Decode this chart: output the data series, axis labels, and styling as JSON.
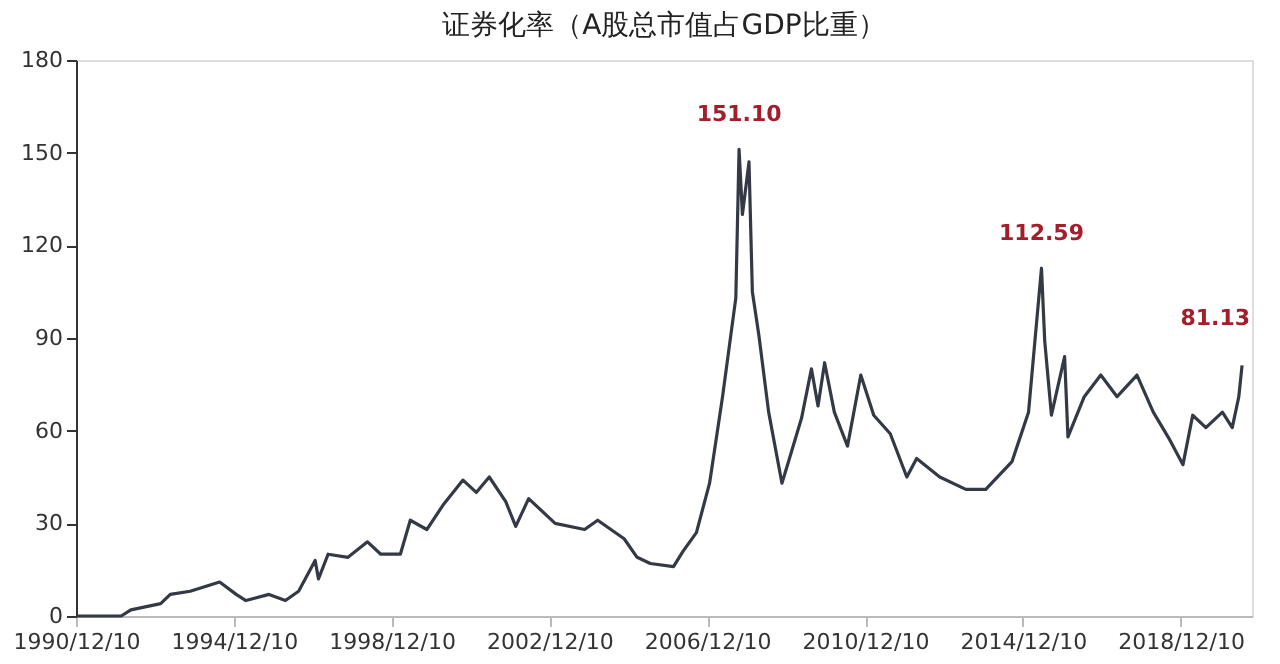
{
  "chart_data": {
    "type": "line",
    "title": "证券化率（A股总市值占GDP比重）",
    "x": [
      "1990-12-10",
      "1992-02",
      "1992-05",
      "1993-02",
      "1993-05",
      "1993-11",
      "1994-08",
      "1995-01",
      "1995-04",
      "1995-11",
      "1996-04",
      "1996-08",
      "1997-01",
      "1997-02",
      "1997-05",
      "1997-11",
      "1998-05",
      "1998-09",
      "1999-03",
      "1999-06",
      "1999-11",
      "2000-04",
      "2000-10",
      "2001-02",
      "2001-06",
      "2001-11",
      "2002-02",
      "2002-06",
      "2003-02",
      "2003-11",
      "2004-03",
      "2004-11",
      "2005-03",
      "2005-07",
      "2006-02",
      "2006-05",
      "2006-09",
      "2007-01",
      "2007-05",
      "2007-09",
      "2007-10",
      "2007-11",
      "2008-01",
      "2008-02",
      "2008-04",
      "2008-07",
      "2008-11",
      "2009-01",
      "2009-05",
      "2009-08",
      "2009-10",
      "2009-12",
      "2010-03",
      "2010-07",
      "2010-11",
      "2011-03",
      "2011-08",
      "2012-01",
      "2012-04",
      "2012-11",
      "2013-07",
      "2014-01",
      "2014-09",
      "2015-02",
      "2015-04",
      "2015-06",
      "2015-07",
      "2015-09",
      "2016-01",
      "2016-02",
      "2016-07",
      "2016-12",
      "2017-05",
      "2017-11",
      "2018-04",
      "2018-09",
      "2019-01",
      "2019-04",
      "2019-08",
      "2020-01",
      "2020-04",
      "2020-06",
      "2020-07"
    ],
    "series": [
      {
        "color": "#333a45",
        "values": [
          0,
          0,
          2,
          4,
          7,
          8,
          11,
          7,
          5,
          7,
          5,
          8,
          18,
          12,
          20,
          19,
          24,
          20,
          20,
          31,
          28,
          36,
          44,
          40,
          45,
          37,
          29,
          38,
          30,
          28,
          31,
          25,
          19,
          17,
          16,
          21,
          27,
          43,
          71,
          103,
          151.1,
          130,
          147,
          105,
          91,
          66,
          43,
          50,
          64,
          80,
          68,
          82,
          66,
          55,
          78,
          65,
          59,
          45,
          51,
          45,
          41,
          41,
          50,
          66,
          89,
          112.59,
          89,
          65,
          84,
          58,
          71,
          78,
          71,
          78,
          66,
          57,
          49,
          65,
          61,
          66,
          61,
          71,
          81.13
        ]
      }
    ],
    "xlim": [
      "1990-12-10",
      "2020-10"
    ],
    "xticks": [
      {
        "value": "1990-12-10",
        "label": "1990/12/10"
      },
      {
        "value": "1994-12-10",
        "label": "1994/12/10"
      },
      {
        "value": "1998-12-10",
        "label": "1998/12/10"
      },
      {
        "value": "2002-12-10",
        "label": "2002/12/10"
      },
      {
        "value": "2006-12-10",
        "label": "2006/12/10"
      },
      {
        "value": "2010-12-10",
        "label": "2010/12/10"
      },
      {
        "value": "2014-12-10",
        "label": "2014/12/10"
      },
      {
        "value": "2018-12-10",
        "label": "2018/12/10"
      }
    ],
    "ylim": [
      0,
      180
    ],
    "yticks": [
      0,
      30,
      60,
      90,
      120,
      150,
      180
    ],
    "annotations": [
      {
        "text": "151.10",
        "x": "2007-10",
        "y": 151.1
      },
      {
        "text": "112.59",
        "x": "2015-06",
        "y": 112.59
      },
      {
        "text": "81.13",
        "x": "2020-07",
        "y": 81.13
      }
    ],
    "grid": false,
    "marker": "none",
    "line_style": "solid"
  }
}
